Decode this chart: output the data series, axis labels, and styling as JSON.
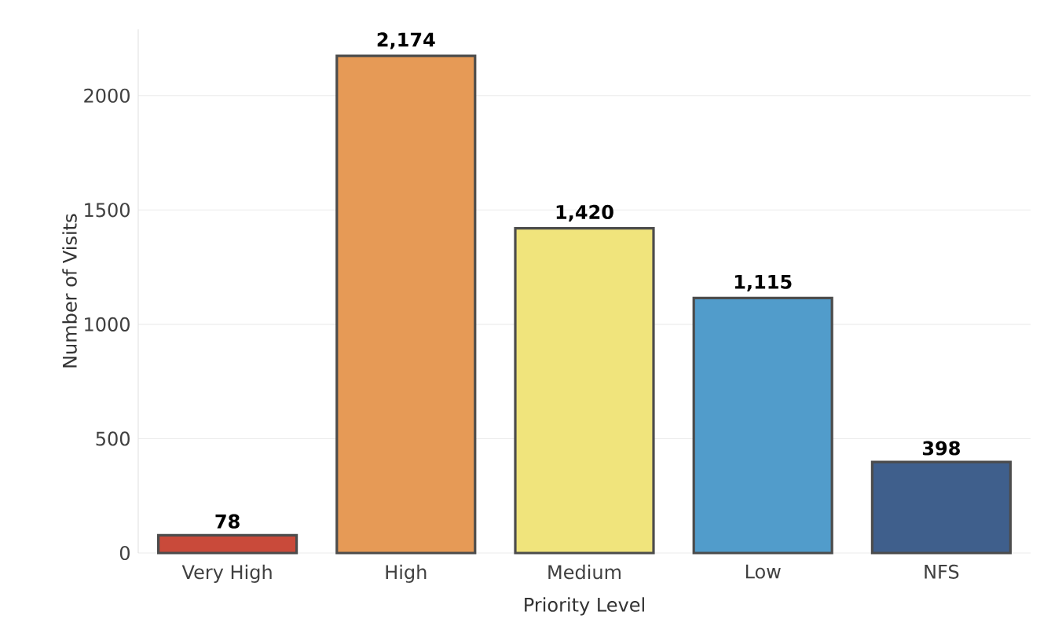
{
  "chart_data": {
    "type": "bar",
    "xlabel": "Priority Level",
    "ylabel": "Number of Visits",
    "categories": [
      "Very High",
      "High",
      "Medium",
      "Low",
      "NFS"
    ],
    "values": [
      78,
      2174,
      1420,
      1115,
      398
    ],
    "value_labels": [
      "78",
      "2,174",
      "1,420",
      "1,115",
      "398"
    ],
    "colors": [
      "#c94a3a",
      "#e69a56",
      "#f0e47c",
      "#519ccb",
      "#3f5f8c"
    ],
    "ylim": [
      0,
      2290
    ],
    "yticks": [
      0,
      500,
      1000,
      1500,
      2000
    ],
    "grid": "y"
  }
}
